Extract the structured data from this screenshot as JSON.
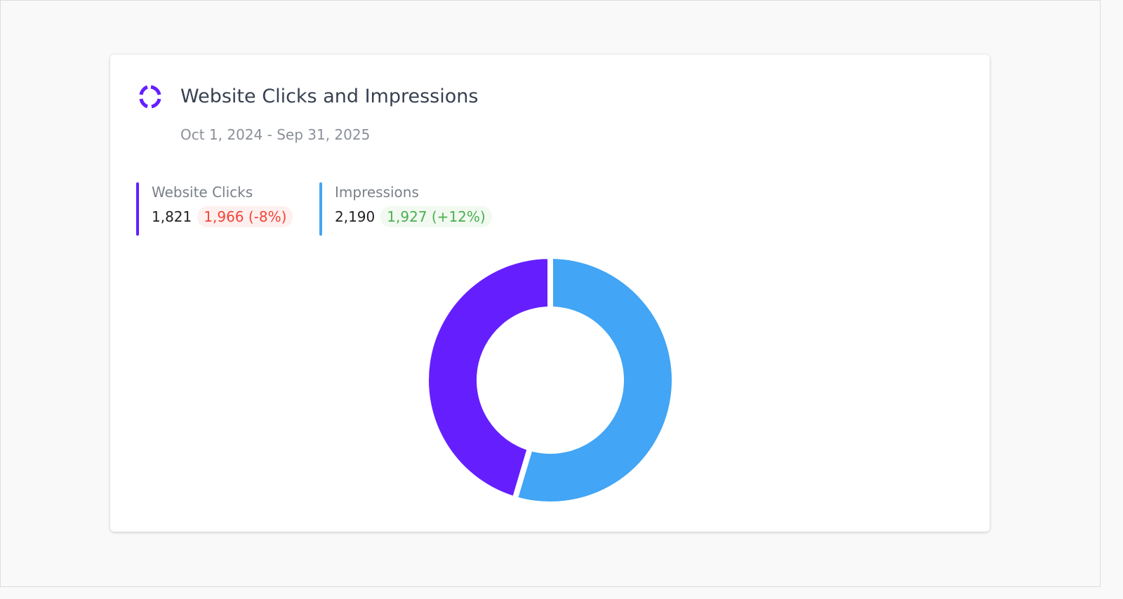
{
  "chart_data": {
    "type": "donut",
    "title": "Website Clicks and Impressions",
    "subtitle": "Oct 1, 2024 - Sep 31, 2025",
    "categories": [
      "Website Clicks",
      "Impressions"
    ],
    "values": [
      1821,
      2190
    ],
    "value_labels": [
      "1,821",
      "2,190"
    ],
    "comparisons": [
      "1,966 (-8%)",
      "1,927 (+12%)"
    ],
    "comparison_colors": [
      "#f44336",
      "#4caf50"
    ],
    "colors": [
      "#651fff",
      "#42a5f5"
    ]
  }
}
